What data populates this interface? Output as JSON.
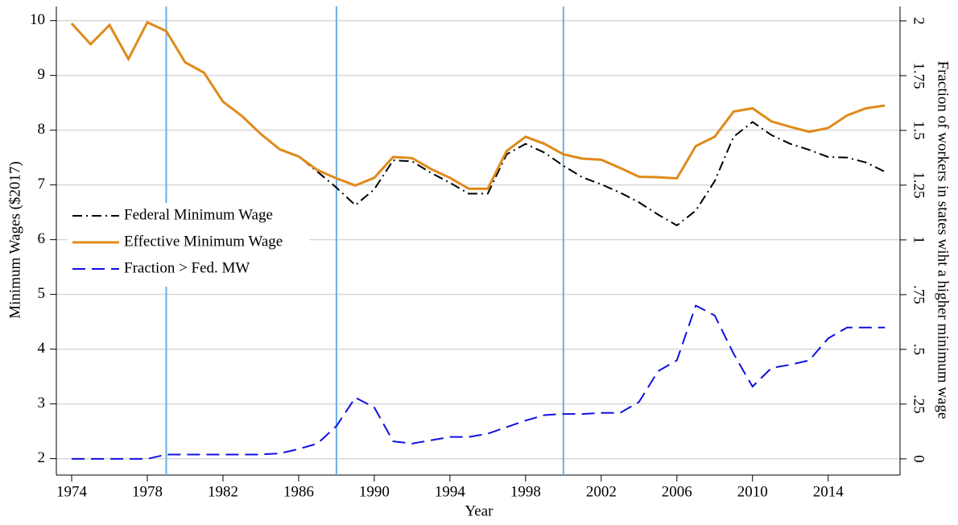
{
  "chart_data": {
    "type": "line",
    "x_label": "Year",
    "y_label": "Minimum Wages ($2017)",
    "y2_label": "Fraction of workers in states wiht a higher minimum wage",
    "x": [
      1974,
      1975,
      1976,
      1977,
      1978,
      1979,
      1980,
      1981,
      1982,
      1983,
      1984,
      1985,
      1986,
      1987,
      1988,
      1989,
      1990,
      1991,
      1992,
      1993,
      1994,
      1995,
      1996,
      1997,
      1998,
      1999,
      2000,
      2001,
      2002,
      2003,
      2004,
      2005,
      2006,
      2007,
      2008,
      2009,
      2010,
      2011,
      2012,
      2013,
      2014,
      2015,
      2016,
      2017
    ],
    "series": [
      {
        "name": "Federal Minimum Wage",
        "color": "#000000",
        "dash": "dashdot",
        "values": [
          9.95,
          9.57,
          9.92,
          9.3,
          9.97,
          9.81,
          9.24,
          9.05,
          8.52,
          8.26,
          7.93,
          7.65,
          7.52,
          7.24,
          6.95,
          6.63,
          6.92,
          7.45,
          7.43,
          7.22,
          7.04,
          6.84,
          6.84,
          7.56,
          7.75,
          7.59,
          7.35,
          7.14,
          7.01,
          6.86,
          6.68,
          6.46,
          6.26,
          6.53,
          7.07,
          7.88,
          8.15,
          7.91,
          7.75,
          7.64,
          7.51,
          7.5,
          7.41,
          7.24
        ]
      },
      {
        "name": "Effective Minimum Wage",
        "color": "#e08a1a",
        "dash": "solid",
        "values": [
          9.95,
          9.57,
          9.92,
          9.3,
          9.97,
          9.81,
          9.24,
          9.05,
          8.52,
          8.26,
          7.93,
          7.65,
          7.52,
          7.27,
          7.12,
          6.99,
          7.13,
          7.51,
          7.49,
          7.29,
          7.13,
          6.93,
          6.93,
          7.62,
          7.88,
          7.75,
          7.56,
          7.48,
          7.46,
          7.31,
          7.15,
          7.14,
          7.12,
          7.71,
          7.88,
          8.34,
          8.4,
          8.16,
          8.06,
          7.97,
          8.04,
          8.27,
          8.4,
          8.45
        ]
      },
      {
        "name": "Fraction > Fed. MW",
        "color": "#1010e0",
        "dash": "dash",
        "axis": "y2",
        "values": [
          0,
          0,
          0,
          0,
          0,
          0.02,
          0.02,
          0.02,
          0.02,
          0.02,
          0.02,
          0.025,
          0.045,
          0.07,
          0.15,
          0.28,
          0.235,
          0.08,
          0.07,
          0.085,
          0.1,
          0.1,
          0.115,
          0.145,
          0.175,
          0.2,
          0.205,
          0.205,
          0.21,
          0.21,
          0.26,
          0.4,
          0.45,
          0.7,
          0.655,
          0.48,
          0.33,
          0.415,
          0.43,
          0.45,
          0.55,
          0.6,
          0.6,
          0.6
        ]
      }
    ],
    "vlines": [
      1979,
      1988,
      2000
    ],
    "vline_color": "#6aaee8",
    "xlim": [
      1973.19,
      2017.8
    ],
    "xticks": [
      1974,
      1978,
      1982,
      1986,
      1990,
      1994,
      1998,
      2002,
      2006,
      2010,
      2014
    ],
    "ylim": [
      1.7,
      10.26
    ],
    "yticks": [
      2,
      3,
      4,
      5,
      6,
      7,
      8,
      9,
      10
    ],
    "y2lim": [
      -0.074,
      2.066
    ],
    "y2ticks": [
      0,
      {
        "value": 0.25,
        "label": ".25"
      },
      {
        "value": 0.5,
        "label": ".5"
      },
      {
        "value": 0.75,
        "label": ".75"
      },
      1,
      {
        "value": 1.25,
        "label": "1.25"
      },
      {
        "value": 1.5,
        "label": "1.5"
      },
      {
        "value": 1.75,
        "label": "1.75"
      },
      2
    ],
    "grid": true
  }
}
